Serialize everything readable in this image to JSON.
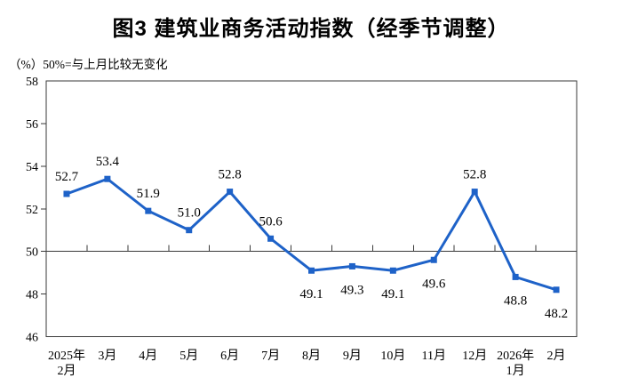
{
  "colors": {
    "line": "#1E62C8",
    "axis": "#3A3A3A",
    "text": "#000000",
    "background": "#FFFFFF"
  },
  "chart_data": {
    "type": "line",
    "title": "图3 建筑业商务活动指数（经季节调整）",
    "subtitle": "（%）50%=与上月比较无变化",
    "categories": [
      "2025年\n2月",
      "3月",
      "4月",
      "5月",
      "6月",
      "7月",
      "8月",
      "9月",
      "10月",
      "11月",
      "12月",
      "2026年\n1月",
      "2月"
    ],
    "values": [
      52.7,
      53.4,
      51.9,
      51.0,
      52.8,
      50.6,
      49.1,
      49.3,
      49.1,
      49.6,
      52.8,
      48.8,
      48.2
    ],
    "ylim": [
      46,
      58
    ],
    "ytick_step": 2,
    "reference_line": 50,
    "grid": "off",
    "legend": "none",
    "marker": "square",
    "label_decimals": 1,
    "label_position_rule": "above if value >= 50, below if value < 50"
  }
}
